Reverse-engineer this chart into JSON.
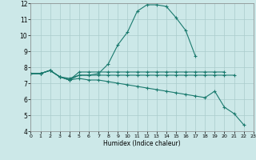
{
  "x_values": [
    0,
    1,
    2,
    3,
    4,
    5,
    6,
    7,
    8,
    9,
    10,
    11,
    12,
    13,
    14,
    15,
    16,
    17,
    18,
    19,
    20,
    21,
    22,
    23
  ],
  "line1": [
    7.6,
    7.6,
    7.8,
    7.4,
    7.2,
    7.7,
    7.7,
    7.7,
    7.7,
    7.7,
    7.7,
    7.7,
    7.7,
    7.7,
    7.7,
    7.7,
    7.7,
    7.7,
    7.7,
    7.7,
    7.7,
    null,
    null,
    null
  ],
  "line2": [
    7.6,
    7.6,
    7.8,
    7.4,
    7.2,
    7.5,
    7.5,
    7.6,
    8.2,
    9.4,
    10.2,
    11.5,
    11.9,
    11.9,
    11.8,
    11.1,
    10.3,
    8.7,
    null,
    null,
    null,
    null,
    null,
    null
  ],
  "line3": [
    7.6,
    7.6,
    7.8,
    7.4,
    7.3,
    7.5,
    7.5,
    7.5,
    7.5,
    7.5,
    7.5,
    7.5,
    7.5,
    7.5,
    7.5,
    7.5,
    7.5,
    7.5,
    7.5,
    7.5,
    7.5,
    7.5,
    null,
    null
  ],
  "line4": [
    7.6,
    7.6,
    7.8,
    7.4,
    7.2,
    7.3,
    7.2,
    7.2,
    7.1,
    7.0,
    6.9,
    6.8,
    6.7,
    6.6,
    6.5,
    6.4,
    6.3,
    6.2,
    6.1,
    6.5,
    5.5,
    5.1,
    4.4,
    null
  ],
  "line_color": "#1a7a6e",
  "background_color": "#cce8e8",
  "grid_color": "#aacccc",
  "xlabel": "Humidex (Indice chaleur)",
  "xlim": [
    0,
    23
  ],
  "ylim": [
    4,
    12
  ],
  "yticks": [
    4,
    5,
    6,
    7,
    8,
    9,
    10,
    11,
    12
  ],
  "xticks": [
    0,
    1,
    2,
    3,
    4,
    5,
    6,
    7,
    8,
    9,
    10,
    11,
    12,
    13,
    14,
    15,
    16,
    17,
    18,
    19,
    20,
    21,
    22,
    23
  ]
}
